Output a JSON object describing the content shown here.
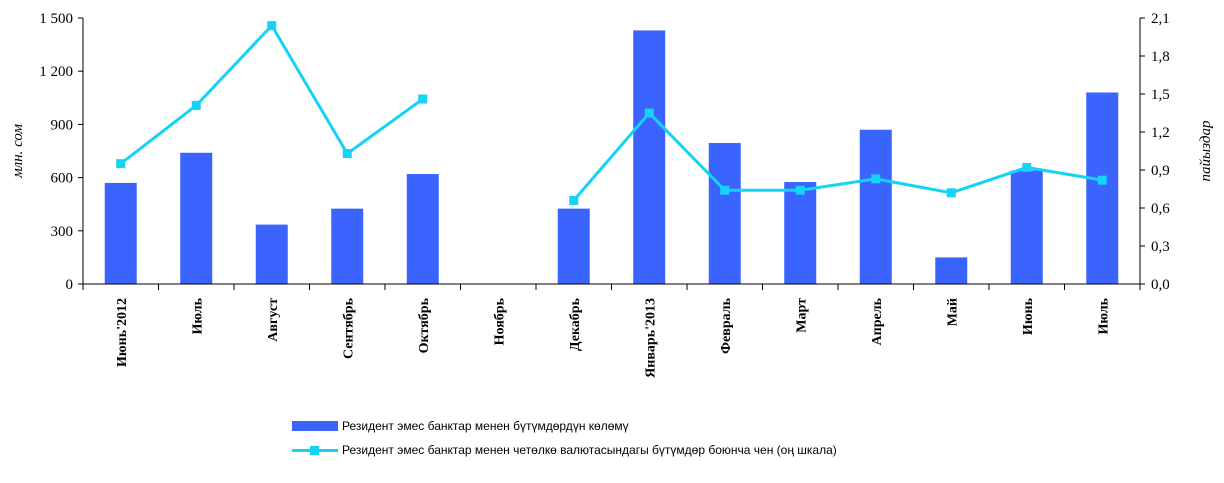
{
  "chart_data": {
    "type": "bar",
    "categories": [
      "Июнь'2012",
      "Июль",
      "Август",
      "Сентябрь",
      "Октябрь",
      "Ноябрь",
      "Декабрь",
      "Январь'2013",
      "Февраль",
      "Март",
      "Апрель",
      "Май",
      "Июнь",
      "Июль"
    ],
    "series": [
      {
        "name": "Резидент эмес банктар менен бүтүмдөрдүн көлөмү",
        "type": "bar",
        "axis": "left",
        "color": "#3b64ff",
        "values": [
          570,
          740,
          335,
          425,
          620,
          0,
          425,
          1430,
          795,
          575,
          870,
          150,
          640,
          1080
        ]
      },
      {
        "name": "Резидент эмес банктар менен четөлкө валютасындагы бүтүмдөр боюнча чен (оң шкала)",
        "type": "line",
        "axis": "right",
        "color": "#14d3f5",
        "marker": "square",
        "values": [
          0.95,
          1.41,
          2.04,
          1.03,
          1.46,
          null,
          0.66,
          1.35,
          0.74,
          0.74,
          0.83,
          0.72,
          0.92,
          0.82
        ]
      }
    ],
    "y_left": {
      "label": "млн. сом",
      "ylim": [
        0,
        1500
      ],
      "ticks": [
        "0",
        "300",
        "600",
        "900",
        "1 200",
        "1 500"
      ]
    },
    "y_right": {
      "label": "пайыздар",
      "ylim": [
        0,
        2.1
      ],
      "ticks": [
        "0,0",
        "0,3",
        "0,6",
        "0,9",
        "1,2",
        "1,5",
        "1,8",
        "2,1"
      ]
    },
    "grid": false,
    "legend_position": "bottom"
  }
}
